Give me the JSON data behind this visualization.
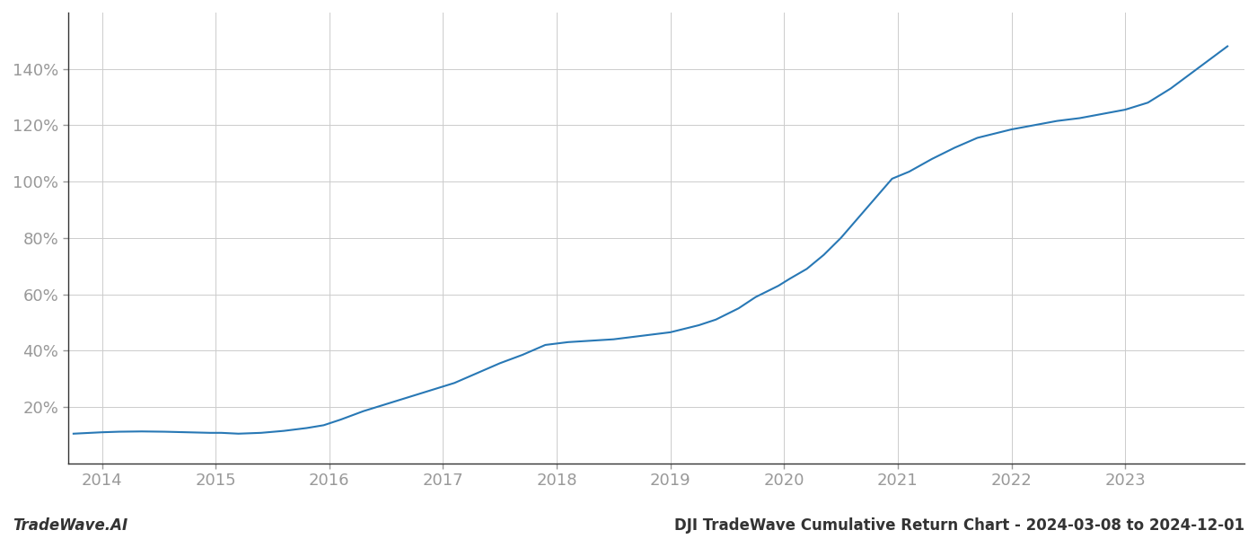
{
  "title": "DJI TradeWave Cumulative Return Chart - 2024-03-08 to 2024-12-01",
  "watermark": "TradeWave.AI",
  "line_color": "#2878b5",
  "background_color": "#ffffff",
  "grid_color": "#cccccc",
  "x_years": [
    2014,
    2015,
    2016,
    2017,
    2018,
    2019,
    2020,
    2021,
    2022,
    2023
  ],
  "y_ticks": [
    20,
    40,
    60,
    80,
    100,
    120,
    140
  ],
  "x_data": [
    2013.75,
    2014.0,
    2014.15,
    2014.35,
    2014.55,
    2014.75,
    2014.95,
    2015.05,
    2015.2,
    2015.4,
    2015.6,
    2015.8,
    2015.95,
    2016.1,
    2016.3,
    2016.5,
    2016.7,
    2016.9,
    2017.1,
    2017.3,
    2017.5,
    2017.7,
    2017.9,
    2018.1,
    2018.3,
    2018.5,
    2018.7,
    2018.9,
    2019.0,
    2019.1,
    2019.25,
    2019.4,
    2019.6,
    2019.75,
    2019.85,
    2019.95,
    2020.05,
    2020.2,
    2020.35,
    2020.5,
    2020.65,
    2020.8,
    2020.95,
    2021.1,
    2021.3,
    2021.5,
    2021.7,
    2021.9,
    2022.0,
    2022.2,
    2022.4,
    2022.6,
    2022.8,
    2023.0,
    2023.2,
    2023.4,
    2023.6,
    2023.75,
    2023.9
  ],
  "y_data": [
    10.5,
    11.0,
    11.2,
    11.3,
    11.2,
    11.0,
    10.8,
    10.8,
    10.5,
    10.8,
    11.5,
    12.5,
    13.5,
    15.5,
    18.5,
    21.0,
    23.5,
    26.0,
    28.5,
    32.0,
    35.5,
    38.5,
    42.0,
    43.0,
    43.5,
    44.0,
    45.0,
    46.0,
    46.5,
    47.5,
    49.0,
    51.0,
    55.0,
    59.0,
    61.0,
    63.0,
    65.5,
    69.0,
    74.0,
    80.0,
    87.0,
    94.0,
    101.0,
    103.5,
    108.0,
    112.0,
    115.5,
    117.5,
    118.5,
    120.0,
    121.5,
    122.5,
    124.0,
    125.5,
    128.0,
    133.0,
    139.0,
    143.5,
    148.0
  ],
  "xlim": [
    2013.7,
    2024.05
  ],
  "ylim": [
    0,
    160
  ],
  "line_width": 1.5,
  "title_fontsize": 12,
  "tick_fontsize": 13,
  "watermark_fontsize": 12,
  "tick_color": "#999999",
  "title_color": "#333333",
  "watermark_color": "#333333",
  "spine_color": "#333333"
}
